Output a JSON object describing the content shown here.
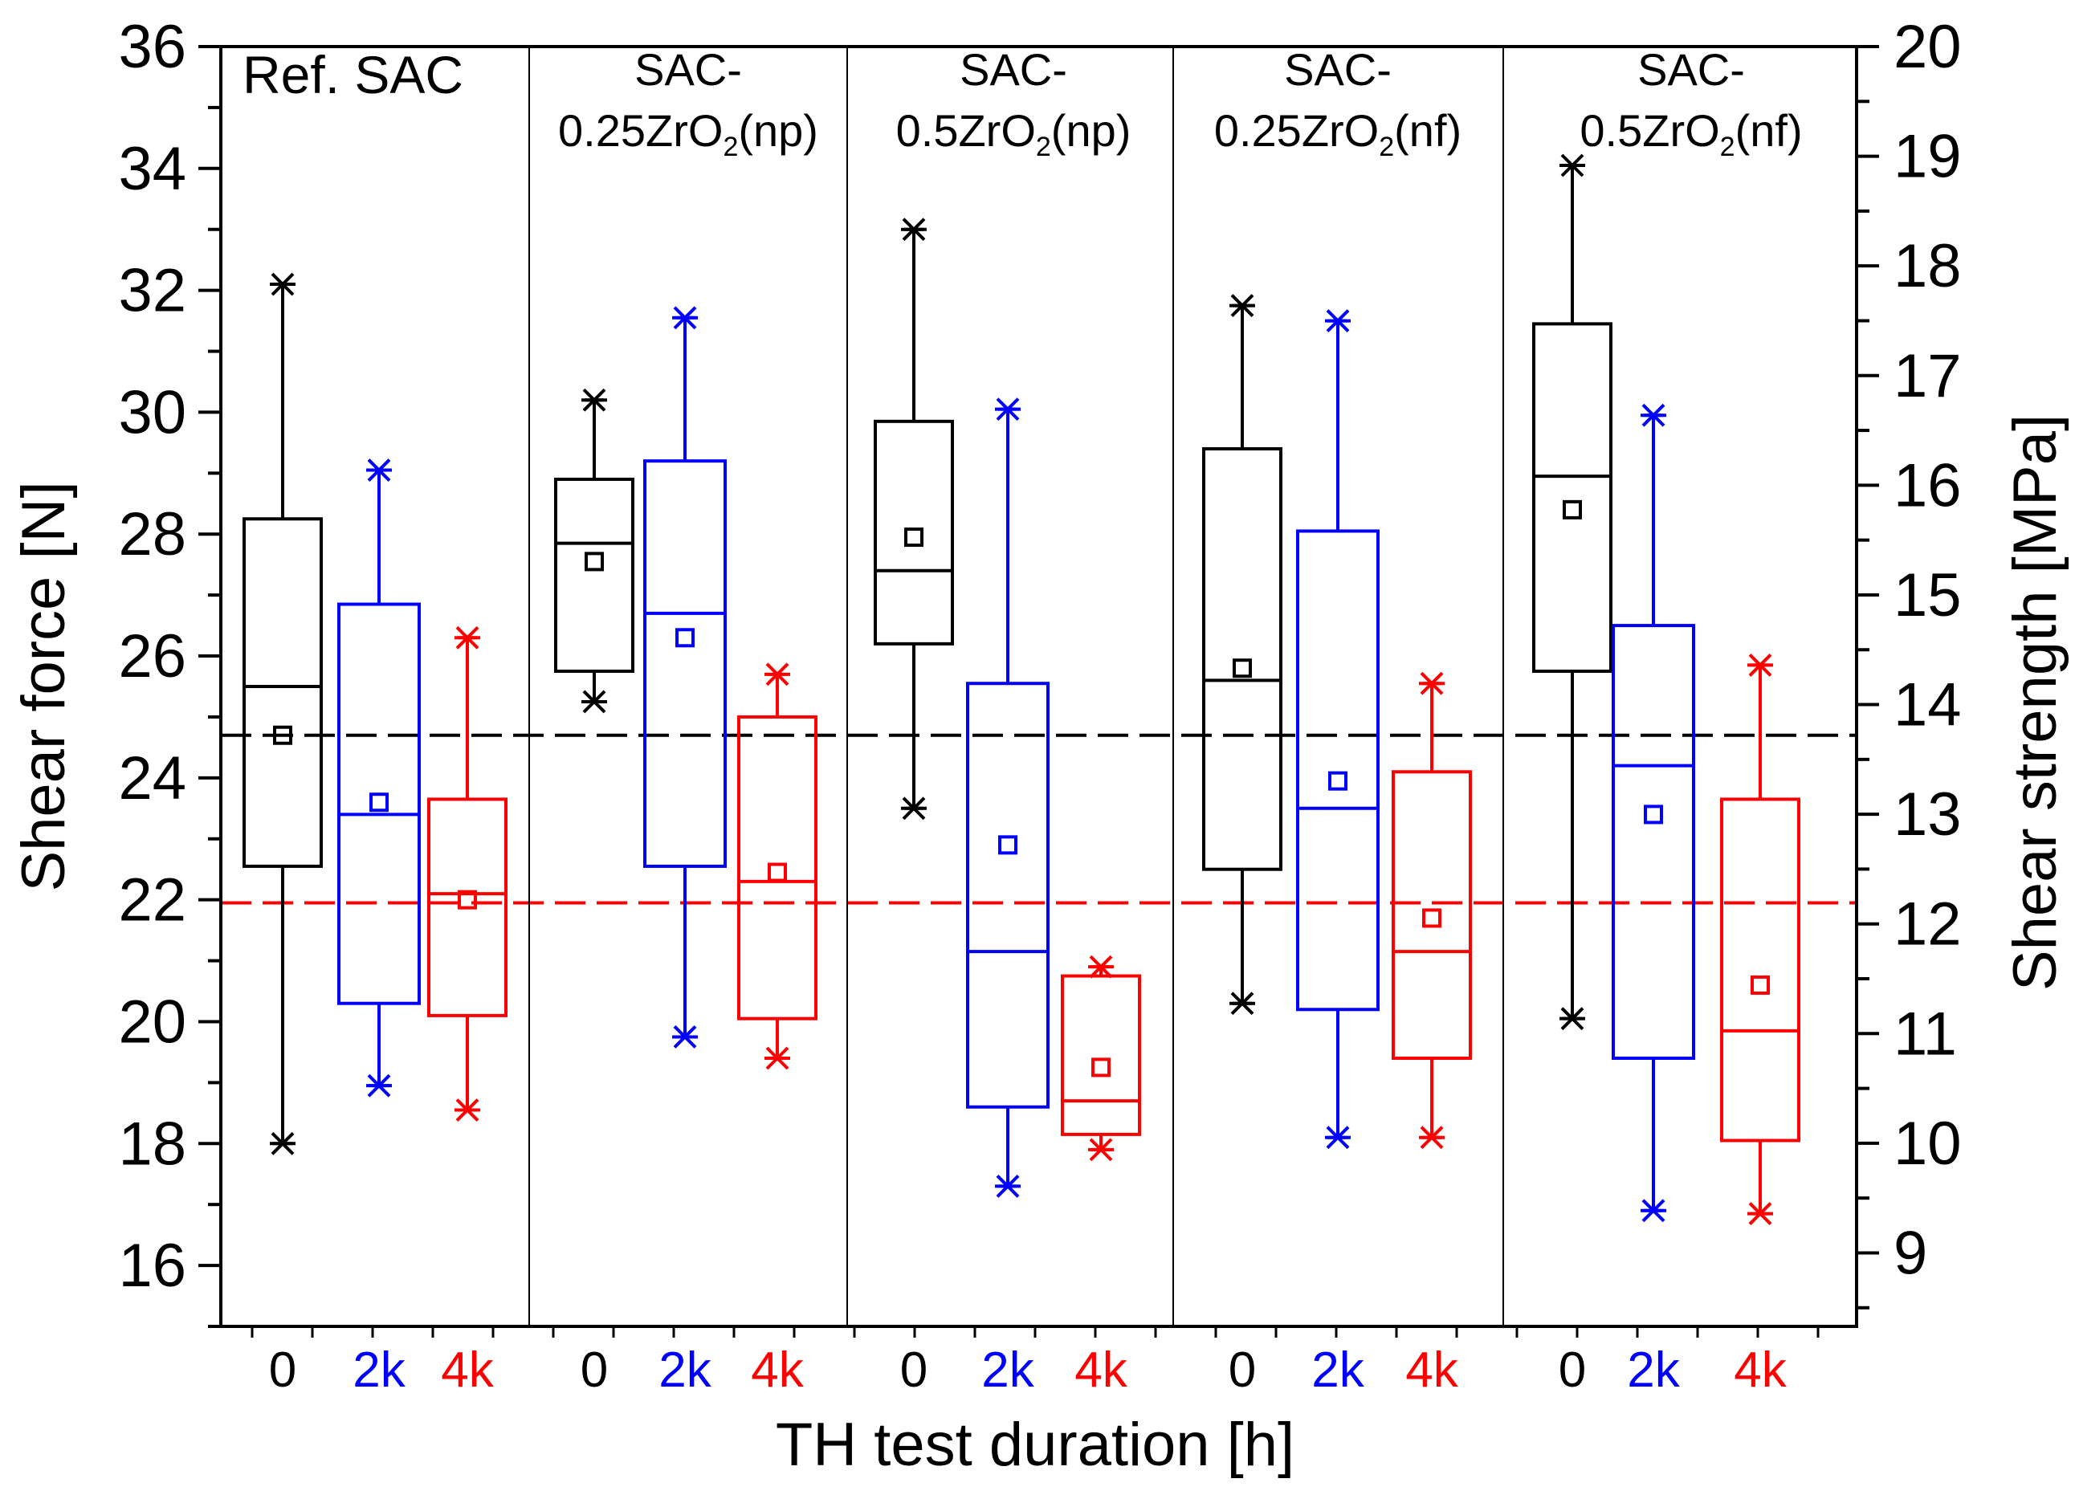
{
  "chart_data": {
    "type": "box",
    "xlabel": "TH test duration [h]",
    "ylabel_left": "Shear force [N]",
    "ylabel_right": "Shear strength  [MPa]",
    "ylim_left": [
      15,
      36
    ],
    "ylim_right": [
      8.33,
      20
    ],
    "yticks_left": [
      "16",
      "18",
      "20",
      "22",
      "24",
      "26",
      "28",
      "30",
      "32",
      "34",
      "36"
    ],
    "yticks_right": [
      "9",
      "10",
      "11",
      "12",
      "13",
      "14",
      "15",
      "16",
      "17",
      "18",
      "19",
      "20"
    ],
    "colors": {
      "0": "#000000",
      "2k": "#0000ff",
      "4k": "#ff0000"
    },
    "reference_lines": [
      {
        "name": "ref-mean-0h",
        "value": 24.7,
        "color": "#000000",
        "style": "dashed"
      },
      {
        "name": "ref-mean-4k",
        "value": 21.95,
        "color": "#ff0000",
        "style": "dashed"
      }
    ],
    "groups": [
      {
        "title": [
          "Ref. SAC"
        ],
        "boxes": [
          {
            "label": "0",
            "whisker_low": 18.0,
            "q1": 22.55,
            "median": 25.5,
            "q3": 28.25,
            "whisker_high": 32.1,
            "mean": 24.7,
            "min": 18.0,
            "max": 32.1
          },
          {
            "label": "2k",
            "whisker_low": 18.95,
            "q1": 20.3,
            "median": 23.4,
            "q3": 26.85,
            "whisker_high": 29.05,
            "mean": 23.6,
            "min": 18.95,
            "max": 29.05
          },
          {
            "label": "4k",
            "whisker_low": 18.55,
            "q1": 20.1,
            "median": 22.1,
            "q3": 23.65,
            "whisker_high": 26.3,
            "mean": 22.0,
            "min": 18.55,
            "max": 26.3
          }
        ]
      },
      {
        "title": [
          "SAC-",
          "0.25ZrO",
          "2",
          "(np)"
        ],
        "boxes": [
          {
            "label": "0",
            "whisker_low": 25.25,
            "q1": 25.75,
            "median": 27.85,
            "q3": 28.9,
            "whisker_high": 30.2,
            "mean": 27.55,
            "min": 25.25,
            "max": 30.2
          },
          {
            "label": "2k",
            "whisker_low": 19.75,
            "q1": 22.55,
            "median": 26.7,
            "q3": 29.2,
            "whisker_high": 31.55,
            "mean": 26.3,
            "min": 19.75,
            "max": 31.55
          },
          {
            "label": "4k",
            "whisker_low": 19.4,
            "q1": 20.05,
            "median": 22.3,
            "q3": 25.0,
            "whisker_high": 25.7,
            "mean": 22.45,
            "min": 19.4,
            "max": 25.7
          }
        ]
      },
      {
        "title": [
          "SAC-",
          "0.5ZrO",
          "2",
          "(np)"
        ],
        "boxes": [
          {
            "label": "0",
            "whisker_low": 23.5,
            "q1": 26.2,
            "median": 27.4,
            "q3": 29.85,
            "whisker_high": 33.0,
            "mean": 27.95,
            "min": 23.5,
            "max": 33.0
          },
          {
            "label": "2k",
            "whisker_low": 17.3,
            "q1": 18.6,
            "median": 21.15,
            "q3": 25.55,
            "whisker_high": 30.05,
            "mean": 22.9,
            "min": 17.3,
            "max": 30.05
          },
          {
            "label": "4k",
            "whisker_low": 17.9,
            "q1": 18.15,
            "median": 18.7,
            "q3": 20.75,
            "whisker_high": 20.9,
            "mean": 19.25,
            "min": 17.9,
            "max": 20.9
          }
        ]
      },
      {
        "title": [
          "SAC-",
          "0.25ZrO",
          "2",
          "(nf)"
        ],
        "boxes": [
          {
            "label": "0",
            "whisker_low": 20.3,
            "q1": 22.5,
            "median": 25.6,
            "q3": 29.4,
            "whisker_high": 31.75,
            "mean": 25.8,
            "min": 20.3,
            "max": 31.75
          },
          {
            "label": "2k",
            "whisker_low": 18.1,
            "q1": 20.2,
            "median": 23.5,
            "q3": 28.05,
            "whisker_high": 31.5,
            "mean": 23.95,
            "min": 18.1,
            "max": 31.5
          },
          {
            "label": "4k",
            "whisker_low": 18.1,
            "q1": 19.4,
            "median": 21.15,
            "q3": 24.1,
            "whisker_high": 25.55,
            "mean": 21.7,
            "min": 18.1,
            "max": 25.55
          }
        ]
      },
      {
        "title": [
          "SAC-",
          "0.5ZrO",
          "2",
          "(nf)"
        ],
        "boxes": [
          {
            "label": "0",
            "whisker_low": 20.05,
            "q1": 25.75,
            "median": 28.95,
            "q3": 31.45,
            "whisker_high": 34.05,
            "mean": 28.4,
            "min": 20.05,
            "max": 34.05
          },
          {
            "label": "2k",
            "whisker_low": 16.9,
            "q1": 19.4,
            "median": 24.2,
            "q3": 26.5,
            "whisker_high": 29.95,
            "mean": 23.4,
            "min": 16.9,
            "max": 29.95
          },
          {
            "label": "4k",
            "whisker_low": 16.85,
            "q1": 18.05,
            "median": 19.85,
            "q3": 23.65,
            "whisker_high": 25.85,
            "mean": 20.6,
            "min": 16.85,
            "max": 25.85
          }
        ]
      }
    ]
  }
}
